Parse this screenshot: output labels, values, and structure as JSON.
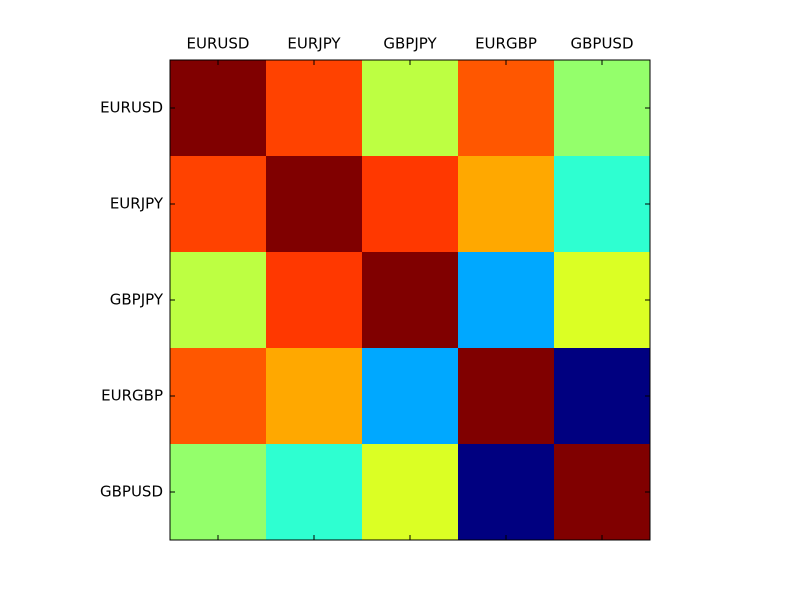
{
  "chart_data": {
    "type": "heatmap",
    "categories": [
      "EURUSD",
      "EURJPY",
      "GBPJPY",
      "EURGBP",
      "GBPUSD"
    ],
    "values": [
      [
        1,
        0.81,
        0.56,
        0.79,
        0.52
      ],
      [
        0.81,
        1,
        0.82,
        0.71,
        0.42
      ],
      [
        0.56,
        0.82,
        1,
        0.29,
        0.59
      ],
      [
        0.79,
        0.71,
        0.29,
        1,
        0
      ],
      [
        0.52,
        0.42,
        0.59,
        0,
        1
      ]
    ],
    "colormap": "jet",
    "clim": [
      0,
      1
    ]
  }
}
